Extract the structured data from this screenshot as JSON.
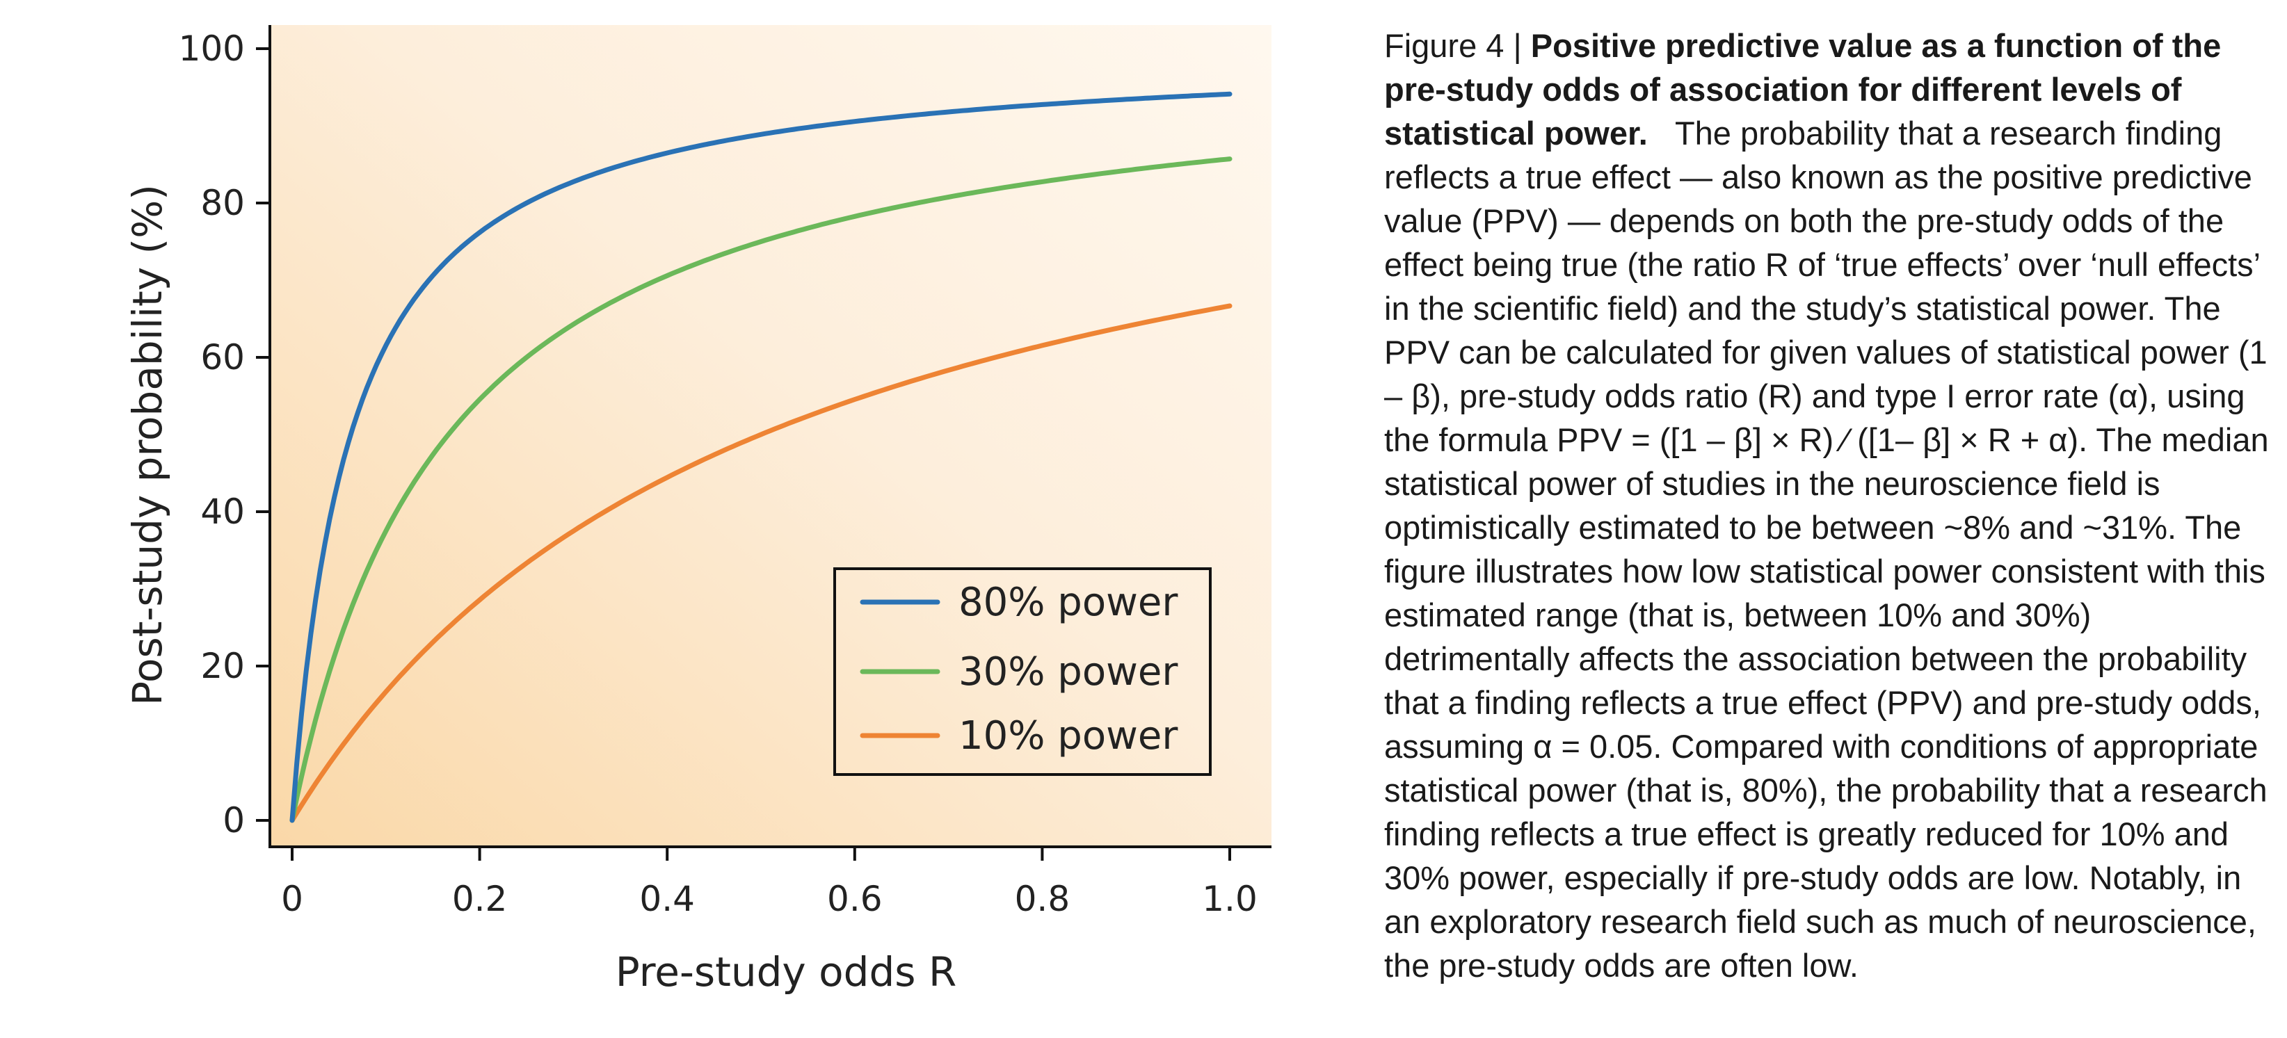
{
  "chart_data": {
    "type": "line",
    "xlabel": "Pre-study odds R",
    "ylabel": "Post-study probability (%)",
    "xlim": [
      0,
      1.0
    ],
    "ylim": [
      0,
      100
    ],
    "x_ticks": [
      "0",
      "0.2",
      "0.4",
      "0.6",
      "0.8",
      "1.0"
    ],
    "y_ticks": [
      "0",
      "20",
      "40",
      "60",
      "80",
      "100"
    ],
    "alpha": 0.05,
    "x": [
      0.005,
      0.01,
      0.02,
      0.03,
      0.05,
      0.075,
      0.1,
      0.15,
      0.2,
      0.25,
      0.3,
      0.4,
      0.5,
      0.6,
      0.7,
      0.8,
      0.9,
      1.0
    ],
    "series": [
      {
        "name": "80% power",
        "color": "#2a72b5",
        "power": 0.8,
        "values": [
          7.4,
          13.8,
          24.2,
          32.4,
          44.4,
          54.5,
          61.5,
          70.6,
          76.2,
          80.0,
          82.8,
          86.5,
          88.9,
          90.6,
          91.8,
          92.8,
          93.5,
          94.1
        ]
      },
      {
        "name": "30% power",
        "color": "#6bb85a",
        "power": 0.3,
        "values": [
          2.9,
          5.7,
          10.7,
          15.3,
          23.1,
          31.0,
          37.5,
          47.4,
          54.5,
          60.0,
          64.3,
          70.6,
          75.0,
          78.3,
          80.8,
          82.8,
          84.4,
          85.7
        ]
      },
      {
        "name": "10% power",
        "color": "#ee8434",
        "power": 0.1,
        "values": [
          1.0,
          2.0,
          3.8,
          5.7,
          9.1,
          13.0,
          16.7,
          23.1,
          28.6,
          33.3,
          37.5,
          44.4,
          50.0,
          54.5,
          58.3,
          61.5,
          64.3,
          66.7
        ]
      }
    ],
    "legend_position": "bottom-right",
    "grid": false
  },
  "caption": {
    "figure_label": "Figure 4 | ",
    "title": "Positive predictive value as a function of the pre-study odds of association for different levels of statistical power.",
    "body": "The probability that a research finding reflects a true effect — also known as the positive predictive value (PPV) — depends on both the pre-study odds of the effect being true (the ratio R of ‘true effects’ over ‘null effects’ in the scientific field) and the study’s statistical power. The PPV can be calculated for given values of statistical power (1 – β), pre-study odds ratio (R) and type I error rate (α), using the formula PPV = ([1 – β] × R) ⁄ ([1– β] × R + α). The median statistical power of studies in the neuroscience field is optimistically estimated to be between ~8% and ~31%. The figure illustrates how low statistical power consistent with this estimated range (that is, between 10% and 30%) detrimentally affects the association between the probability that a finding reflects a true effect (PPV) and pre-study odds, assuming α = 0.05. Compared with conditions of appropriate statistical power (that is, 80%), the probability that a research finding reflects a true effect is greatly reduced for 10% and 30% power, especially if pre-study odds are low. Notably, in an exploratory research field such as much of neuroscience, the pre-study odds are often low."
  }
}
